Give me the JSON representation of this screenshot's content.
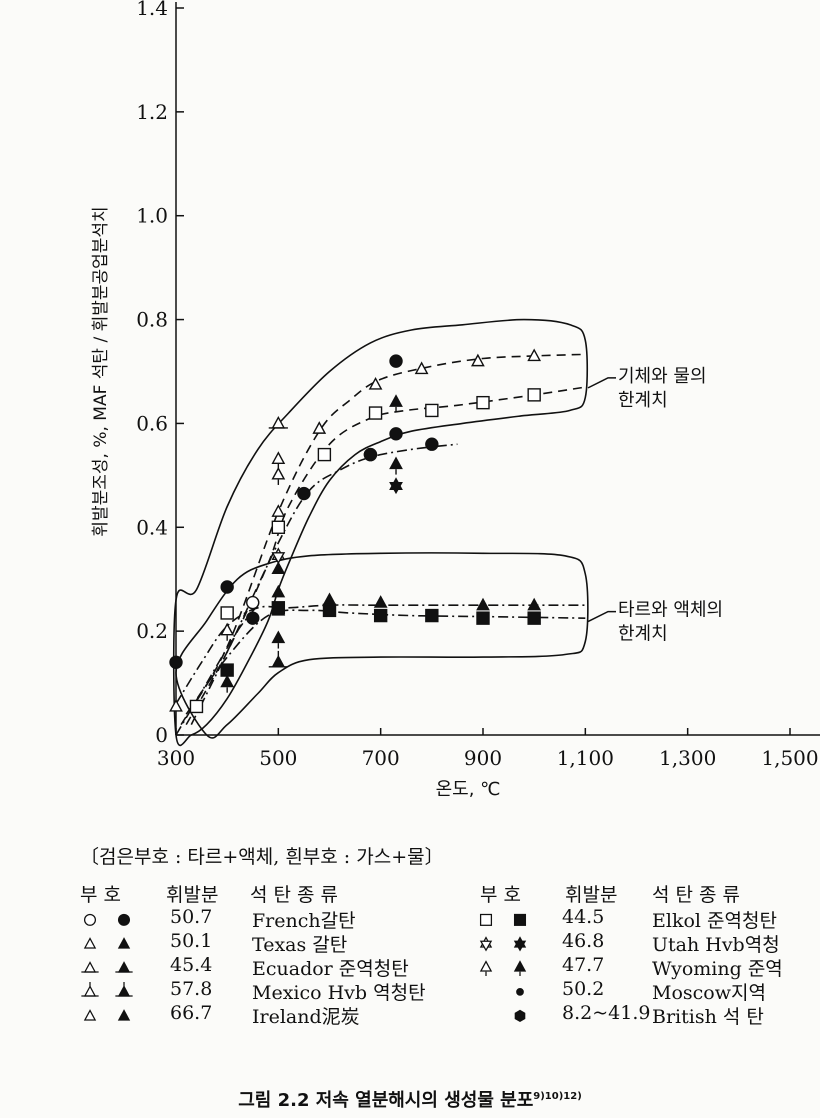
{
  "chart_data": {
    "type": "scatter",
    "xlabel": "온도, ℃",
    "ylabel": "휘발분조성, %, MAF 석탄 / 휘발분공업분석치",
    "xlim": [
      300,
      1500
    ],
    "ylim": [
      0,
      1.4
    ],
    "x_ticks": [
      "300",
      "500",
      "700",
      "900",
      "1,100",
      "1,300",
      "1,500"
    ],
    "y_ticks": [
      "0",
      "0.2",
      "0.4",
      "0.6",
      "0.8",
      "1.0",
      "1.2",
      "1.4"
    ],
    "grid": false,
    "legend_placement": "below",
    "annotations": [
      {
        "text": "기체와 물의 한계치",
        "lines": [
          "기체와 물의",
          "한계치"
        ],
        "x": 1140,
        "y": 0.68
      },
      {
        "text": "타르와 액체의 한계치",
        "lines": [
          "타르와 액체의",
          "한계치"
        ],
        "x": 1140,
        "y": 0.23
      }
    ],
    "series": [
      {
        "name": "French갈탄 (가스+물)",
        "marker": "circle-open",
        "points": [
          [
            450,
            0.255
          ],
          [
            680,
            0.54
          ]
        ]
      },
      {
        "name": "French갈탄 (타르+액체)",
        "marker": "circle-filled",
        "points": [
          [
            300,
            0.14
          ],
          [
            400,
            0.285
          ],
          [
            450,
            0.225
          ],
          [
            550,
            0.465
          ],
          [
            680,
            0.54
          ],
          [
            730,
            0.72
          ],
          [
            730,
            0.58
          ],
          [
            800,
            0.56
          ]
        ]
      },
      {
        "name": "Texas 갈탄 (가스+물)",
        "marker": "triangle-open",
        "points": [
          [
            300,
            0.055
          ],
          [
            500,
            0.43
          ],
          [
            580,
            0.59
          ],
          [
            690,
            0.675
          ],
          [
            780,
            0.705
          ],
          [
            890,
            0.72
          ],
          [
            1000,
            0.73
          ]
        ]
      },
      {
        "name": "Texas 갈탄 (타르+액체)",
        "marker": "triangle-filled",
        "points": [
          [
            500,
            0.24
          ],
          [
            500,
            0.275
          ],
          [
            500,
            0.32
          ],
          [
            600,
            0.26
          ],
          [
            700,
            0.255
          ],
          [
            900,
            0.25
          ],
          [
            1000,
            0.25
          ]
        ]
      },
      {
        "name": "Ecuador 준역청탄 (가스+물)",
        "marker": "triangle-open-bar",
        "points": [
          [
            500,
            0.6
          ]
        ]
      },
      {
        "name": "Mexico Hvb 역청탄 (타르+액체)",
        "marker": "triangle-filled-stem",
        "points": [
          [
            500,
            0.14
          ]
        ]
      },
      {
        "name": "Elkol 준역청탄 (가스+물)",
        "marker": "square-open",
        "points": [
          [
            340,
            0.055
          ],
          [
            400,
            0.235
          ],
          [
            500,
            0.4
          ],
          [
            590,
            0.54
          ],
          [
            690,
            0.62
          ],
          [
            800,
            0.625
          ],
          [
            900,
            0.64
          ],
          [
            1000,
            0.655
          ]
        ]
      },
      {
        "name": "Elkol 준역청탄 (타르+액체)",
        "marker": "square-filled",
        "points": [
          [
            400,
            0.125
          ],
          [
            500,
            0.245
          ],
          [
            600,
            0.24
          ],
          [
            700,
            0.23
          ],
          [
            800,
            0.23
          ],
          [
            900,
            0.225
          ],
          [
            1000,
            0.225
          ]
        ]
      },
      {
        "name": "Utah Hvb역청탄 (가스+물)",
        "marker": "star-open",
        "points": [
          [
            500,
            0.345
          ]
        ]
      },
      {
        "name": "Utah Hvb역청탄 (타르+액체)",
        "marker": "star-filled",
        "points": [
          [
            730,
            0.48
          ]
        ]
      },
      {
        "name": "Wyoming 준역청탄 (가스+물)",
        "marker": "diamond-tri-open",
        "points": [
          [
            500,
            0.53
          ],
          [
            500,
            0.5
          ],
          [
            400,
            0.2
          ]
        ]
      },
      {
        "name": "Wyoming 준역청탄 (타르+액체)",
        "marker": "diamond-tri-filled",
        "points": [
          [
            500,
            0.185
          ],
          [
            400,
            0.1
          ],
          [
            730,
            0.64
          ],
          [
            730,
            0.52
          ]
        ]
      }
    ],
    "curves": [
      {
        "style": "dashed",
        "x": [
          310,
          400,
          500,
          580,
          640,
          700,
          800,
          900,
          1000,
          1100
        ],
        "y": [
          0.02,
          0.17,
          0.43,
          0.585,
          0.645,
          0.685,
          0.71,
          0.725,
          0.73,
          0.733
        ]
      },
      {
        "style": "dashed",
        "x": [
          320,
          400,
          480,
          520,
          600,
          680,
          750,
          850,
          1000,
          1100
        ],
        "y": [
          0.02,
          0.16,
          0.33,
          0.44,
          0.56,
          0.61,
          0.625,
          0.635,
          0.655,
          0.67
        ]
      },
      {
        "style": "dashdot",
        "x": [
          330,
          400,
          500,
          560,
          620,
          680,
          760,
          850
        ],
        "y": [
          0.02,
          0.16,
          0.37,
          0.47,
          0.51,
          0.535,
          0.55,
          0.56
        ]
      },
      {
        "style": "dashdot",
        "x": [
          300,
          350,
          400,
          460,
          520,
          600,
          700,
          900,
          1100
        ],
        "y": [
          0.06,
          0.14,
          0.21,
          0.245,
          0.245,
          0.25,
          0.25,
          0.25,
          0.25
        ]
      },
      {
        "style": "dashdot",
        "x": [
          320,
          400,
          480,
          560,
          640,
          760,
          900,
          1100
        ],
        "y": [
          0.04,
          0.15,
          0.23,
          0.24,
          0.235,
          0.23,
          0.228,
          0.225
        ]
      },
      {
        "style": "dashdot",
        "x": [
          300,
          360,
          420,
          460
        ],
        "y": [
          0.0,
          0.1,
          0.2,
          0.25
        ]
      }
    ],
    "regions": [
      {
        "x": [
          300,
          340,
          400,
          460,
          520,
          600,
          680,
          760,
          860,
          980,
          1070,
          1100,
          1100,
          1070,
          980,
          860,
          760,
          700,
          650,
          600,
          560,
          520,
          500,
          480,
          440,
          400,
          360,
          330,
          300
        ],
        "y": [
          0.26,
          0.28,
          0.44,
          0.55,
          0.62,
          0.7,
          0.755,
          0.78,
          0.79,
          0.8,
          0.79,
          0.76,
          0.65,
          0.625,
          0.615,
          0.6,
          0.585,
          0.565,
          0.54,
          0.49,
          0.42,
          0.33,
          0.28,
          0.22,
          0.14,
          0.07,
          0.02,
          0.0,
          0.0
        ]
      },
      {
        "x": [
          300,
          360,
          420,
          480,
          560,
          700,
          900,
          1060,
          1100,
          1100,
          1060,
          900,
          700,
          560,
          500,
          460,
          400,
          360
        ],
        "y": [
          0.12,
          0.22,
          0.3,
          0.33,
          0.345,
          0.35,
          0.35,
          0.345,
          0.31,
          0.18,
          0.155,
          0.15,
          0.15,
          0.145,
          0.12,
          0.08,
          0.02,
          0.0
        ]
      }
    ]
  },
  "legend": {
    "title": "〔검은부호 : 타르+액체,  흰부호 : 가스+물〕",
    "headers": {
      "symbol": "부  호",
      "volatile": "휘발분",
      "coal": "석 탄 종 류"
    },
    "left_rows": [
      {
        "volatile": "50.7",
        "coal": "French갈탄",
        "open": "circle-open",
        "filled": "circle-filled"
      },
      {
        "volatile": "50.1",
        "coal": "Texas 갈탄",
        "open": "triangle-open",
        "filled": "triangle-filled"
      },
      {
        "volatile": "45.4",
        "coal": "Ecuador 준역청탄",
        "open": "triangle-open-bar",
        "filled": "triangle-filled-bar"
      },
      {
        "volatile": "57.8",
        "coal": "Mexico Hvb 역청탄",
        "open": "triangle-open-stem",
        "filled": "triangle-filled-stem"
      },
      {
        "volatile": "66.7",
        "coal": "Ireland泥炭",
        "open": "triangle-open",
        "filled": "triangle-filled"
      }
    ],
    "right_rows": [
      {
        "volatile": "44.5",
        "coal": "Elkol 준역청탄",
        "open": "square-open",
        "filled": "square-filled"
      },
      {
        "volatile": "46.8",
        "coal": "Utah Hvb역청",
        "open": "star-open",
        "filled": "star-filled"
      },
      {
        "volatile": "47.7",
        "coal": "Wyoming 준역",
        "open": "diamond-tri-open",
        "filled": "diamond-tri-filled"
      },
      {
        "volatile": "50.2",
        "coal": "Moscow지역",
        "open": "",
        "filled": "dot-small"
      },
      {
        "volatile": "8.2~41.9",
        "coal": "British 석 탄",
        "open": "",
        "filled": "hexagon-filled"
      }
    ]
  },
  "caption": {
    "text": "그림 2.2  저속 열분해시의 생성물 분포",
    "refs": "9)10)12)"
  }
}
